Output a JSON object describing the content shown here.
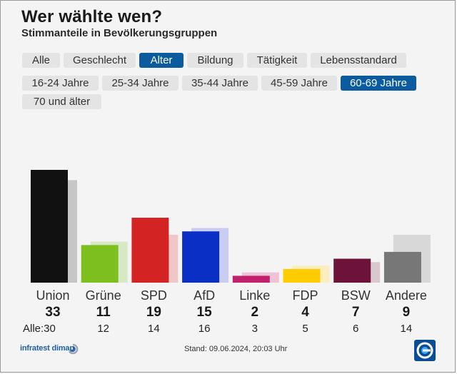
{
  "header": {
    "title": "Wer wählte wen?",
    "subtitle": "Stimmanteile in Bevölkerungsgruppen"
  },
  "categories": {
    "items": [
      "Alle",
      "Geschlecht",
      "Alter",
      "Bildung",
      "Tätigkeit",
      "Lebensstandard"
    ],
    "active": "Alter"
  },
  "age_groups": {
    "items": [
      "16-24 Jahre",
      "25-34 Jahre",
      "35-44 Jahre",
      "45-59 Jahre",
      "60-69 Jahre",
      "70 und älter"
    ],
    "active": "60-69 Jahre"
  },
  "footer": {
    "source": "infratest dimap",
    "stand": "Stand: 09.06.2024, 20:03 Uhr"
  },
  "chart_data": {
    "type": "bar",
    "categories": [
      "Union",
      "Grüne",
      "SPD",
      "AfD",
      "Linke",
      "FDP",
      "BSW",
      "Andere"
    ],
    "series": [
      {
        "name": "60-69 Jahre",
        "values": [
          33,
          11,
          19,
          15,
          2,
          4,
          7,
          9
        ]
      },
      {
        "name": "Alle",
        "values": [
          30,
          12,
          14,
          16,
          3,
          5,
          6,
          14
        ]
      }
    ],
    "all_label": "Alle:",
    "colors": [
      "#111111",
      "#7dbf1f",
      "#d42323",
      "#0a2fc4",
      "#c2206a",
      "#ffcc00",
      "#6d1339",
      "#777777"
    ],
    "ghost_colors": [
      "#c6c6c6",
      "#d6e9c4",
      "#f0c6c6",
      "#c9cdf1",
      "#efc3d6",
      "#fbedbf",
      "#dac8cf",
      "#d8d8d8"
    ],
    "ylim": [
      0,
      33
    ]
  }
}
